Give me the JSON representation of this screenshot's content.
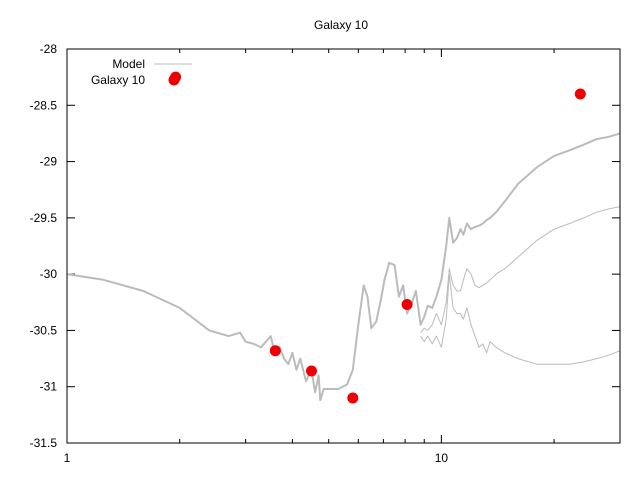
{
  "chart_data": {
    "type": "line",
    "title": "Galaxy 10",
    "xscale": "log",
    "xlim": [
      1,
      30
    ],
    "ylim": [
      -31.5,
      -28
    ],
    "x_ticks": [
      {
        "value": 1,
        "label": "1"
      },
      {
        "value": 10,
        "label": "10"
      }
    ],
    "y_ticks": [
      {
        "value": -28,
        "label": "-28"
      },
      {
        "value": -28.5,
        "label": "-28.5"
      },
      {
        "value": -29,
        "label": "-29"
      },
      {
        "value": -29.5,
        "label": "-29.5"
      },
      {
        "value": -30,
        "label": "-30"
      },
      {
        "value": -30.5,
        "label": "-30.5"
      },
      {
        "value": -31,
        "label": "-31"
      },
      {
        "value": -31.5,
        "label": "-31.5"
      }
    ],
    "legend": {
      "placement": "top-left",
      "entries": [
        {
          "name": "Model",
          "style": "line"
        },
        {
          "name": "Galaxy 10",
          "style": "point"
        }
      ]
    },
    "series": [
      {
        "name": "Model",
        "style": "line",
        "color": "#bbbbbb",
        "x": [
          1.0,
          1.25,
          1.6,
          2.0,
          2.4,
          2.7,
          2.9,
          3.0,
          3.15,
          3.3,
          3.5,
          3.6,
          3.7,
          3.8,
          3.9,
          4.0,
          4.1,
          4.2,
          4.35,
          4.5,
          4.6,
          4.7,
          4.75,
          4.85,
          5.0,
          5.3,
          5.6,
          5.8,
          6.0,
          6.2,
          6.35,
          6.5,
          6.7,
          6.9,
          7.05,
          7.25,
          7.5,
          7.7,
          7.9,
          8.1,
          8.35,
          8.55,
          8.8,
          9.0,
          9.2,
          9.45,
          9.7,
          10.0,
          10.3,
          10.5,
          10.75,
          11.0,
          11.25,
          11.45,
          11.7,
          12.0,
          12.3,
          12.6,
          12.9,
          13.2,
          13.5,
          14.0,
          14.8,
          16.0,
          18.0,
          20.0,
          22.0,
          24.0,
          26.0,
          28.0,
          30.0
        ],
        "y": [
          -30.0,
          -30.05,
          -30.15,
          -30.3,
          -30.5,
          -30.55,
          -30.52,
          -30.6,
          -30.62,
          -30.65,
          -30.55,
          -30.72,
          -30.65,
          -30.75,
          -30.8,
          -30.7,
          -30.85,
          -30.75,
          -30.95,
          -30.85,
          -31.05,
          -30.9,
          -31.12,
          -31.02,
          -31.02,
          -31.02,
          -30.98,
          -30.85,
          -30.45,
          -30.1,
          -30.2,
          -30.48,
          -30.42,
          -30.22,
          -30.05,
          -29.9,
          -29.92,
          -30.2,
          -30.1,
          -30.35,
          -30.25,
          -30.15,
          -30.45,
          -30.38,
          -30.28,
          -30.3,
          -30.2,
          -30.05,
          -29.75,
          -29.5,
          -29.72,
          -29.68,
          -29.6,
          -29.65,
          -29.55,
          -29.6,
          -29.58,
          -29.57,
          -29.55,
          -29.52,
          -29.5,
          -29.45,
          -29.35,
          -29.2,
          -29.05,
          -28.95,
          -28.9,
          -28.85,
          -28.8,
          -28.78,
          -28.75
        ]
      },
      {
        "name": "",
        "style": "line",
        "color": "#bbbbbb",
        "x": [
          8.8,
          9.0,
          9.2,
          9.45,
          9.7,
          10.0,
          10.3,
          10.5,
          10.75,
          11.0,
          11.25,
          11.45,
          11.7,
          12.0,
          12.3,
          12.6,
          12.9,
          13.2,
          13.5,
          14.0,
          14.8,
          16.0,
          18.0,
          20.0,
          22.0,
          24.0,
          26.0,
          28.0,
          30.0
        ],
        "y": [
          -30.52,
          -30.48,
          -30.5,
          -30.45,
          -30.35,
          -30.45,
          -30.25,
          -29.95,
          -30.1,
          -30.15,
          -30.15,
          -30.05,
          -29.95,
          -30.0,
          -30.1,
          -30.12,
          -30.1,
          -30.08,
          -30.05,
          -30.0,
          -29.95,
          -29.85,
          -29.7,
          -29.6,
          -29.55,
          -29.5,
          -29.45,
          -29.42,
          -29.4
        ]
      },
      {
        "name": "",
        "style": "line",
        "color": "#bbbbbb",
        "x": [
          8.8,
          9.0,
          9.2,
          9.45,
          9.7,
          10.0,
          10.3,
          10.5,
          10.75,
          11.0,
          11.25,
          11.45,
          11.7,
          12.0,
          12.3,
          12.6,
          12.9,
          13.2,
          13.5,
          14.0,
          14.8,
          16.0,
          18.0,
          20.0,
          22.0,
          24.0,
          26.0,
          28.0,
          30.0
        ],
        "y": [
          -30.55,
          -30.6,
          -30.55,
          -30.62,
          -30.55,
          -30.65,
          -30.4,
          -30.0,
          -30.3,
          -30.35,
          -30.35,
          -30.4,
          -30.3,
          -30.45,
          -30.55,
          -30.65,
          -30.62,
          -30.7,
          -30.6,
          -30.65,
          -30.7,
          -30.75,
          -30.8,
          -30.8,
          -30.8,
          -30.78,
          -30.75,
          -30.72,
          -30.68
        ]
      },
      {
        "name": "Galaxy 10",
        "style": "point",
        "color": "#ee0000",
        "x": [
          1.95,
          3.6,
          4.5,
          5.8,
          8.1,
          23.5
        ],
        "y": [
          -28.25,
          -30.68,
          -30.86,
          -31.1,
          -30.27,
          -28.4
        ]
      }
    ]
  }
}
